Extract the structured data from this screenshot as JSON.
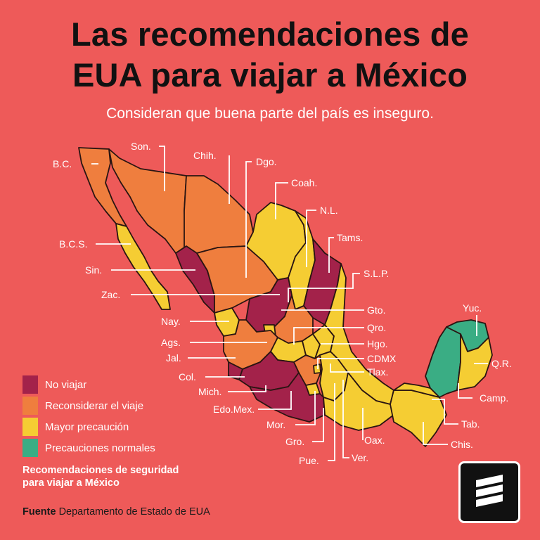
{
  "title_line1": "Las recomendaciones de",
  "title_line2": "EUA para viajar a México",
  "subtitle": "Consideran que buena parte del país es inseguro.",
  "colors": {
    "background": "#ee5a59",
    "no_viajar": "#a3224a",
    "reconsiderar": "#ef7e3e",
    "mayor_precaucion": "#f5cd33",
    "normales": "#3aad84"
  },
  "states": {
    "bc": "B.C.",
    "son": "Son.",
    "chih": "Chih.",
    "dgo": "Dgo.",
    "coah": "Coah.",
    "nl": "N.L.",
    "tams": "Tams.",
    "bcs": "B.C.S.",
    "sin": "Sin.",
    "zac": "Zac.",
    "slp": "S.L.P.",
    "gto": "Gto.",
    "nay": "Nay.",
    "qro": "Qro.",
    "ags": "Ags.",
    "hgo": "Hgo.",
    "jal": "Jal.",
    "cdmx": "CDMX",
    "tlax": "Tlax.",
    "col": "Col.",
    "mich": "Mich.",
    "edomex": "Edo.Mex.",
    "mor": "Mor.",
    "gro": "Gro.",
    "pue": "Pue.",
    "ver": "Ver.",
    "oax": "Oax.",
    "chis": "Chis.",
    "tab": "Tab.",
    "camp": "Camp.",
    "yuc": "Yuc.",
    "qr": "Q.R."
  },
  "legend": {
    "no_viajar": "No viajar",
    "reconsiderar": "Reconsiderar el viaje",
    "mayor_precaucion": "Mayor precaución",
    "normales": "Precauciones normales",
    "caption_line1": "Recomendaciones de seguridad",
    "caption_line2": "para viajar a México"
  },
  "source": {
    "label": "Fuente",
    "text": "Departamento de Estado de EUA"
  },
  "logo_icon": "publisher-logo-icon"
}
